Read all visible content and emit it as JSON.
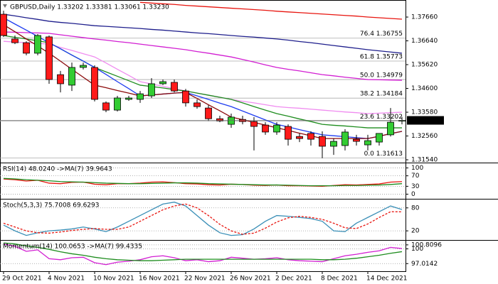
{
  "chart_data": [
    {
      "type": "candlestick",
      "title": "GBPUSD,Daily  1.33202 1.33381 1.33061 1.33230",
      "categories": [
        "29 Oct 2021",
        null,
        null,
        null,
        "4 Nov 2021",
        null,
        null,
        null,
        "10 Nov 2021",
        null,
        null,
        null,
        "16 Nov 2021",
        null,
        null,
        null,
        "22 Nov 2021",
        null,
        null,
        null,
        "26 Nov 2021",
        null,
        null,
        null,
        "2 Dec 2021",
        null,
        null,
        null,
        "8 Dec 2021",
        null,
        null,
        null,
        "14 Dec 2021",
        null,
        null,
        null
      ],
      "open": [
        1.3778,
        1.3672,
        1.3656,
        1.3611,
        1.3681,
        1.3519,
        1.3474,
        1.355,
        1.355,
        1.3398,
        1.3367,
        1.3413,
        1.3413,
        1.3428,
        1.348,
        1.3486,
        1.3449,
        1.3398,
        1.3376,
        1.333,
        1.3306,
        1.3327,
        1.3318,
        1.3303,
        1.3273,
        1.3297,
        1.3254,
        1.3267,
        1.3254,
        1.3212,
        1.3215,
        1.3242,
        1.3218,
        1.323,
        1.3261,
        1.33202
      ],
      "high": [
        1.3793,
        1.3687,
        1.3662,
        1.3693,
        1.3687,
        1.3535,
        1.3571,
        1.3571,
        1.3559,
        1.3404,
        1.3428,
        1.3428,
        1.3449,
        1.3504,
        1.3498,
        1.3498,
        1.3458,
        1.3413,
        1.3388,
        1.3343,
        1.3352,
        1.3343,
        1.3337,
        1.3315,
        1.3315,
        1.3306,
        1.3267,
        1.3276,
        1.3276,
        1.3245,
        1.3285,
        1.3261,
        1.3261,
        1.3267,
        1.3376,
        1.33381
      ],
      "low": [
        1.3681,
        1.365,
        1.3602,
        1.3602,
        1.348,
        1.3443,
        1.3449,
        1.3541,
        1.3404,
        1.3358,
        1.3361,
        1.3407,
        1.3398,
        1.3419,
        1.3474,
        1.3443,
        1.3382,
        1.3373,
        1.3321,
        1.3315,
        1.3291,
        1.3306,
        1.3194,
        1.3261,
        1.3261,
        1.3215,
        1.323,
        1.3215,
        1.3161,
        1.3175,
        1.3194,
        1.3215,
        1.3194,
        1.3215,
        1.3254,
        1.33061
      ],
      "close": [
        1.3687,
        1.3656,
        1.3611,
        1.3687,
        1.3498,
        1.348,
        1.355,
        1.3559,
        1.3413,
        1.3367,
        1.3419,
        1.3419,
        1.3437,
        1.348,
        1.3489,
        1.3449,
        1.3398,
        1.3382,
        1.333,
        1.3321,
        1.3337,
        1.3318,
        1.3297,
        1.3273,
        1.3303,
        1.3242,
        1.3245,
        1.3242,
        1.3212,
        1.3233,
        1.3273,
        1.3233,
        1.3236,
        1.3267,
        1.3315,
        1.3323
      ],
      "up_color": "#33cc33",
      "down_color": "#ff1a1a",
      "lines": [
        {
          "color": "#e8150f",
          "values": [
            null,
            null,
            null,
            null,
            null,
            null,
            null,
            null,
            null,
            null,
            null,
            null,
            1.3829,
            1.3826,
            1.3823,
            1.382,
            1.3816,
            1.3813,
            1.381,
            1.3807,
            1.3804,
            1.3801,
            1.3798,
            1.3795,
            1.3791,
            1.3788,
            1.3785,
            1.3782,
            1.3779,
            1.3776,
            1.3773,
            1.377,
            1.3766,
            1.3763,
            1.376,
            1.3757
          ]
        },
        {
          "color": "#1e1e8c",
          "values": [
            1.3778,
            1.3771,
            1.3763,
            1.3756,
            1.3748,
            1.3743,
            1.3739,
            1.3734,
            1.3729,
            1.3726,
            1.3723,
            1.372,
            1.3717,
            1.3713,
            1.371,
            1.3706,
            1.3702,
            1.3698,
            1.3695,
            1.3691,
            1.3687,
            1.3683,
            1.368,
            1.3676,
            1.3672,
            1.3667,
            1.3661,
            1.3656,
            1.365,
            1.3644,
            1.3638,
            1.3632,
            1.3626,
            1.3621,
            1.3616,
            1.3611
          ]
        },
        {
          "color": "#d21ed2",
          "values": [
            1.3702,
            1.3701,
            1.3699,
            1.3698,
            1.3696,
            1.369,
            1.3684,
            1.3678,
            1.3672,
            1.3667,
            1.3661,
            1.3656,
            1.365,
            1.3644,
            1.3638,
            1.3632,
            1.3626,
            1.3618,
            1.3611,
            1.3603,
            1.3595,
            1.3584,
            1.3573,
            1.3561,
            1.355,
            1.3542,
            1.3535,
            1.3527,
            1.3519,
            1.3514,
            1.3508,
            1.3503,
            1.3498,
            1.3497,
            1.3496,
            1.3495
          ]
        },
        {
          "color": "#f08cf0",
          "values": [
            1.3662,
            1.3659,
            1.3656,
            1.3653,
            1.365,
            1.3636,
            1.3623,
            1.3609,
            1.3595,
            1.3569,
            1.3542,
            1.3516,
            1.3489,
            1.3479,
            1.3469,
            1.3459,
            1.3449,
            1.344,
            1.3431,
            1.3422,
            1.3413,
            1.3405,
            1.3398,
            1.339,
            1.3382,
            1.3378,
            1.3375,
            1.3371,
            1.3367,
            1.3363,
            1.3359,
            1.3356,
            1.3352,
            1.3354,
            1.3356,
            1.3358
          ]
        },
        {
          "color": "#1e8c1e",
          "values": [
            1.3687,
            1.3679,
            1.3672,
            1.3664,
            1.3656,
            1.363,
            1.3603,
            1.3577,
            1.355,
            1.3531,
            1.3512,
            1.3493,
            1.3474,
            1.3468,
            1.3462,
            1.3455,
            1.3449,
            1.344,
            1.3431,
            1.3422,
            1.3413,
            1.3398,
            1.3382,
            1.3367,
            1.3352,
            1.3341,
            1.3329,
            1.3318,
            1.3306,
            1.3302,
            1.3299,
            1.3295,
            1.3291,
            1.3291,
            1.3291,
            1.3291
          ]
        },
        {
          "color": "#1e3cf0",
          "values": [
            1.3763,
            1.3736,
            1.371,
            1.3683,
            1.3656,
            1.363,
            1.3603,
            1.3577,
            1.355,
            1.352,
            1.3489,
            1.3459,
            1.3428,
            1.3432,
            1.3436,
            1.344,
            1.3443,
            1.3428,
            1.3413,
            1.3397,
            1.3382,
            1.3363,
            1.3344,
            1.3325,
            1.3306,
            1.3295,
            1.3283,
            1.3272,
            1.3261,
            1.3257,
            1.3253,
            1.3249,
            1.3245,
            1.3255,
            1.3266,
            1.3276
          ]
        },
        {
          "color": "#8c0a0a",
          "values": [
            1.3733,
            1.3703,
            1.3672,
            1.3642,
            1.3611,
            1.3577,
            1.3542,
            1.3508,
            1.3474,
            1.3463,
            1.3451,
            1.344,
            1.3428,
            1.3432,
            1.3436,
            1.344,
            1.3443,
            1.3417,
            1.339,
            1.3364,
            1.3337,
            1.3326,
            1.3314,
            1.3303,
            1.3291,
            1.328,
            1.3268,
            1.3257,
            1.3245,
            1.3245,
            1.3245,
            1.3245,
            1.3245,
            1.3255,
            1.3266,
            1.3276
          ]
        }
      ],
      "levels": [
        {
          "label": "76.4 1.36755",
          "value": 1.36755
        },
        {
          "label": "61.8 1.35773",
          "value": 1.35773
        },
        {
          "label": "50.0 1.34979",
          "value": 1.34979
        },
        {
          "label": "38.2 1.34184",
          "value": 1.34184
        },
        {
          "label": "23.6 1.33202",
          "value": 1.33202
        },
        {
          "label": "0.0 1.31613",
          "value": 1.31613
        }
      ],
      "level_color": "#aaaaaa",
      "ylim": [
        1.3145,
        1.383
      ],
      "yticks": [
        {
          "value": 1.3766,
          "label": "1.37660"
        },
        {
          "value": 1.3664,
          "label": "1.36640"
        },
        {
          "value": 1.3562,
          "label": "1.35620"
        },
        {
          "value": 1.346,
          "label": "1.34600"
        },
        {
          "value": 1.3358,
          "label": "1.33580"
        },
        {
          "value": 1.3256,
          "label": "1.32560"
        },
        {
          "value": 1.3154,
          "label": "1.31540"
        }
      ],
      "price_label": {
        "value": 1.3323,
        "label": "1.33230"
      },
      "grid": false
    },
    {
      "type": "line",
      "title": "RSI(14) 48.0240 ->MA(7) 39.9643",
      "series": [
        {
          "color": "#e8150f",
          "values": [
            58,
            55,
            50,
            53,
            42,
            40,
            45,
            46,
            38,
            36,
            40,
            40,
            42,
            46,
            47,
            44,
            40,
            39,
            36,
            35,
            38,
            37,
            34,
            33,
            35,
            32,
            32,
            31,
            30,
            33,
            36,
            35,
            37,
            39,
            46,
            48.024
          ]
        },
        {
          "color": "#1e8c1e",
          "values": [
            60,
            58,
            55,
            53,
            51,
            48,
            47,
            46,
            44,
            42,
            41,
            40,
            40,
            41,
            42,
            43,
            43,
            42,
            40,
            39,
            38,
            37,
            36,
            35,
            35,
            34,
            33,
            32,
            32,
            32,
            33,
            33,
            34,
            35,
            37,
            39.9643
          ]
        }
      ],
      "ylim": [
        -15,
        115
      ],
      "yticks": [
        100,
        70,
        30,
        0
      ],
      "grid": true
    },
    {
      "type": "line",
      "title": "Stoch(5,3,3) 75.7008 69.6293",
      "series": [
        {
          "color": "#3a8fb7",
          "values": [
            35,
            20,
            8,
            15,
            20,
            22,
            25,
            30,
            25,
            18,
            30,
            45,
            60,
            75,
            90,
            95,
            85,
            60,
            35,
            15,
            8,
            10,
            25,
            45,
            60,
            58,
            55,
            52,
            45,
            20,
            18,
            40,
            55,
            70,
            85,
            75.7008
          ]
        },
        {
          "color": "#e8150f",
          "dashed": true,
          "values": [
            40,
            30,
            20,
            15,
            14,
            17,
            21,
            24,
            26,
            24,
            24,
            30,
            45,
            60,
            75,
            85,
            90,
            80,
            60,
            37,
            20,
            11,
            14,
            27,
            43,
            54,
            58,
            55,
            50,
            40,
            28,
            26,
            38,
            55,
            70,
            69.6293
          ]
        }
      ],
      "ylim": [
        -2,
        100
      ],
      "yticks": [
        80,
        20
      ],
      "grid": true
    },
    {
      "type": "line",
      "title": "Momentum(14) 100.0653 ->MA(7) 99.4335",
      "series": [
        {
          "color": "#d21ed2",
          "values": [
            101,
            100.5,
            99.5,
            99.8,
            98,
            97.8,
            98.2,
            98.3,
            97.2,
            96.8,
            97.3,
            97.5,
            97.8,
            98.4,
            98.6,
            98.2,
            97.6,
            97.8,
            97.4,
            97.6,
            98.3,
            98.1,
            97.9,
            98.0,
            98.2,
            97.8,
            97.6,
            97.5,
            97.4,
            98.0,
            98.6,
            98.9,
            99.3,
            99.6,
            100.3,
            100.0653
          ]
        },
        {
          "color": "#1e8c1e",
          "values": [
            101.2,
            101,
            100.6,
            100.3,
            99.9,
            99.4,
            99.0,
            98.7,
            98.3,
            98.0,
            97.8,
            97.7,
            97.6,
            97.6,
            97.7,
            97.8,
            97.9,
            97.9,
            97.9,
            97.9,
            97.9,
            97.9,
            97.9,
            97.9,
            97.9,
            97.9,
            97.9,
            97.9,
            97.8,
            97.8,
            97.9,
            98.1,
            98.4,
            98.7,
            99.1,
            99.4335
          ]
        }
      ],
      "ylim": [
        95.47,
        101.51
      ],
      "yticks": [
        100.8096,
        100,
        97.0142
      ],
      "grid": true
    }
  ]
}
